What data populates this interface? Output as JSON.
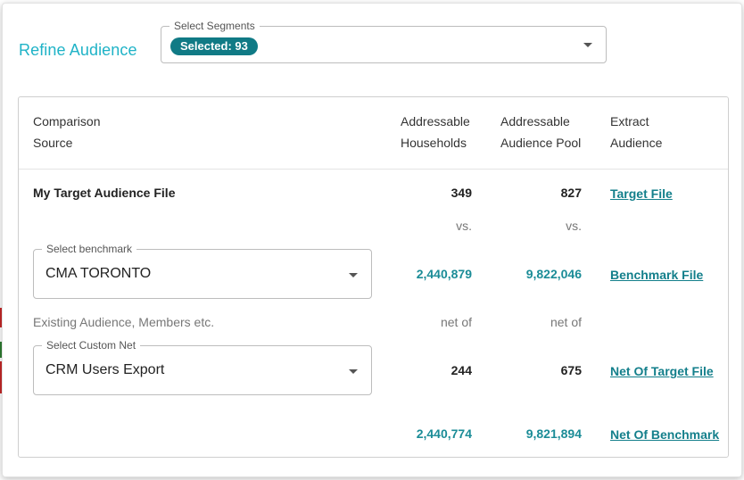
{
  "header": {
    "title": "Refine Audience",
    "segments_label": "Select Segments",
    "selected_chip": "Selected: 93"
  },
  "table": {
    "columns": {
      "source_line1": "Comparison",
      "source_line2": "Source",
      "households_line1": "Addressable",
      "households_line2": "Households",
      "pool_line1": "Addressable",
      "pool_line2": "Audience Pool",
      "extract_line1": "Extract",
      "extract_line2": "Audience"
    },
    "target": {
      "label": "My Target Audience File",
      "households": "349",
      "pool": "827",
      "link": "Target File"
    },
    "vs_label": "vs.",
    "benchmark": {
      "select_label": "Select benchmark",
      "value": "CMA TORONTO",
      "households": "2,440,879",
      "pool": "9,822,046",
      "link": "Benchmark File"
    },
    "existing_label": "Existing Audience, Members etc.",
    "net_of_label": "net of",
    "custom_net": {
      "select_label": "Select Custom Net",
      "value": "CRM Users Export",
      "households": "244",
      "pool": "675",
      "link": "Net Of Target File"
    },
    "net_benchmark": {
      "households": "2,440,774",
      "pool": "9,821,894",
      "link": "Net Of Benchmark"
    }
  },
  "colors": {
    "title": "#1fb3c7",
    "chip": "#107a85",
    "teal_value": "#1b8c97",
    "link": "#137f8b"
  }
}
